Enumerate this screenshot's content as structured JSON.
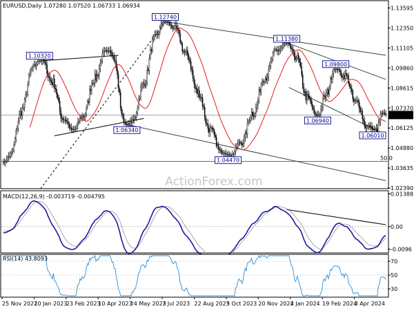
{
  "chart_data": {
    "type": "candlestick",
    "symbol": "EURUSD",
    "timeframe": "Daily",
    "ohlc_label": "EURUSD,Daily  1.07280 1.07520 1.06733 1.06934",
    "last_price": "1.06934",
    "watermark": "ActionForex.com",
    "price_axis": {
      "range": [
        1.0235,
        1.1405
      ],
      "ticks": [
        "1.13595",
        "1.12350",
        "1.11105",
        "1.09860",
        "1.08615",
        "1.07370",
        "1.06125",
        "1.04880",
        "1.03635",
        "1.02390"
      ]
    },
    "time_labels": [
      "25 Nov 2022",
      "10 Jan 2023",
      "23 Feb 2023",
      "10 Apr 2023",
      "24 May 2023",
      "7 Jul 2023",
      "22 Aug 2023",
      "5 Oct 2023",
      "20 Nov 2023",
      "4 Jan 2024",
      "19 Feb 2024",
      "3 Apr 2024"
    ],
    "level_labels": [
      {
        "text": "1.10320",
        "index": 34,
        "price": 1.1032,
        "place": "above"
      },
      {
        "text": "1.06340",
        "index": 116,
        "price": 1.0634,
        "place": "below"
      },
      {
        "text": "1.12740",
        "index": 152,
        "price": 1.1274,
        "place": "above"
      },
      {
        "text": "1.04470",
        "index": 211,
        "price": 1.0447,
        "place": "below"
      },
      {
        "text": "1.11380",
        "index": 266,
        "price": 1.1138,
        "place": "above"
      },
      {
        "text": "1.06940",
        "index": 295,
        "price": 1.0694,
        "place": "below"
      },
      {
        "text": "1.09800",
        "index": 312,
        "price": 1.098,
        "place": "above"
      },
      {
        "text": "1.06010",
        "index": 348,
        "price": 1.0601,
        "place": "below"
      }
    ],
    "pivots": [
      [
        0,
        1.0395
      ],
      [
        34,
        1.1032
      ],
      [
        65,
        1.0605
      ],
      [
        100,
        1.1095
      ],
      [
        116,
        1.0634
      ],
      [
        152,
        1.1274
      ],
      [
        211,
        1.0447
      ],
      [
        266,
        1.1138
      ],
      [
        295,
        1.0694
      ],
      [
        312,
        1.098
      ],
      [
        348,
        1.0601
      ],
      [
        356,
        1.0705
      ]
    ],
    "horizontal_line": {
      "price": 1.0405,
      "label": "50.0"
    },
    "trendlines": [
      {
        "from": [
          38,
          1.1032
        ],
        "to": [
          108,
          1.1065
        ],
        "color": "#000000"
      },
      {
        "from": [
          48,
          1.0564
        ],
        "to": [
          132,
          1.0672
        ],
        "color": "#000000"
      },
      {
        "from": [
          35,
          1.0235
        ],
        "to": [
          152,
          1.1274
        ],
        "color": "#000000",
        "dashed": true
      },
      {
        "from": [
          152,
          1.1274
        ],
        "to": [
          359,
          1.1065
        ],
        "color": "#2e4a3c"
      },
      {
        "from": [
          116,
          1.0634
        ],
        "to": [
          359,
          1.0285
        ],
        "color": "#2e4a3c"
      },
      {
        "from": [
          268,
          1.1138
        ],
        "to": [
          359,
          1.0915
        ],
        "color": "#2e4a3c"
      },
      {
        "from": [
          268,
          1.0865
        ],
        "to": [
          359,
          1.057
        ],
        "color": "#2e4a3c"
      }
    ],
    "moving_average_color": "#e31a1c",
    "macd": {
      "label": "MACD(12,26,9) -0.003719 -0.004795",
      "ticks": [
        "0.013881",
        "0.00",
        "-0.0096"
      ],
      "range": [
        -0.0112,
        0.0152
      ],
      "last": -0.003719,
      "signal_last": -0.004795,
      "trendline": {
        "from": [
          266,
          0.0072
        ],
        "to": [
          359,
          0.0008
        ]
      }
    },
    "rsi": {
      "label": "RSI(14) 43.8093",
      "ticks": [
        "70",
        "50",
        "30"
      ],
      "range": [
        18,
        80
      ],
      "last": 43.8093
    }
  }
}
